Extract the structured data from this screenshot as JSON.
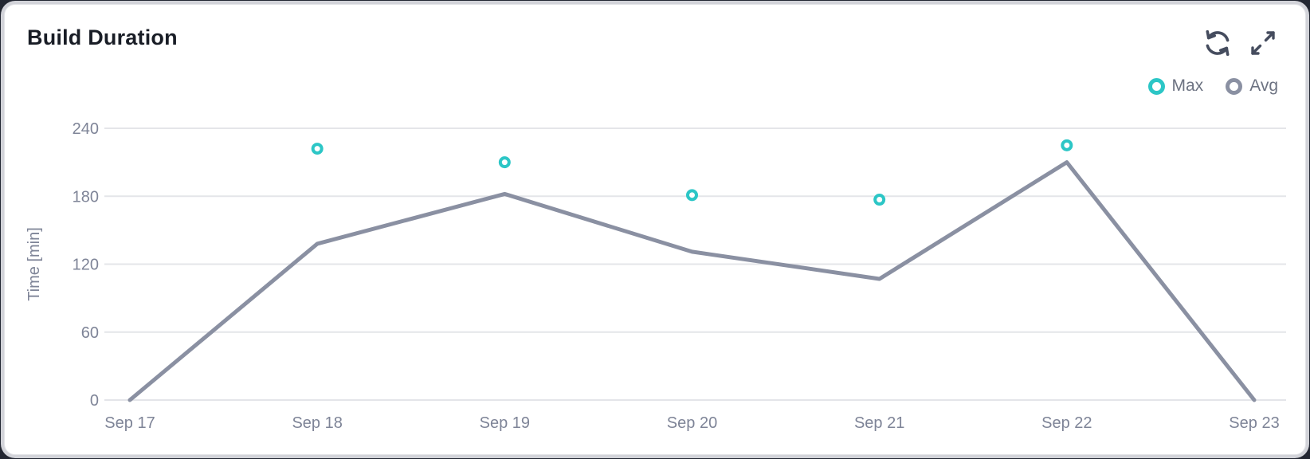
{
  "card": {
    "title": "Build Duration"
  },
  "toolbar": {
    "refresh_icon": "refresh",
    "expand_icon": "expand"
  },
  "legend": {
    "items": [
      {
        "label": "Max",
        "color": "#2cc6c6"
      },
      {
        "label": "Avg",
        "color": "#8a90a2"
      }
    ]
  },
  "chart_data": {
    "type": "line",
    "title": "Build Duration",
    "categories": [
      "Sep 17",
      "Sep 18",
      "Sep 19",
      "Sep 20",
      "Sep 21",
      "Sep 22",
      "Sep 23"
    ],
    "series": [
      {
        "name": "Max",
        "type": "scatter",
        "color": "#2cc6c6",
        "values": [
          null,
          222,
          210,
          181,
          177,
          225,
          null
        ]
      },
      {
        "name": "Avg",
        "type": "line",
        "color": "#8a90a2",
        "values": [
          0,
          138,
          182,
          131,
          107,
          210,
          0
        ]
      }
    ],
    "xlabel": "",
    "ylabel": "Time [min]",
    "ylim": [
      0,
      240
    ],
    "yticks": [
      0,
      60,
      120,
      180,
      240
    ],
    "grid": true,
    "legend_position": "top-right"
  },
  "colors": {
    "title_text": "#191d26",
    "axis_text": "#7e8497",
    "grid_line": "#e4e5e9",
    "icon": "#454c5e",
    "accent_teal": "#2cc6c6",
    "line_gray": "#8a90a2",
    "card_bg": "#ffffff",
    "card_ring": "#d2d3d9",
    "page_bg": "#232732"
  }
}
